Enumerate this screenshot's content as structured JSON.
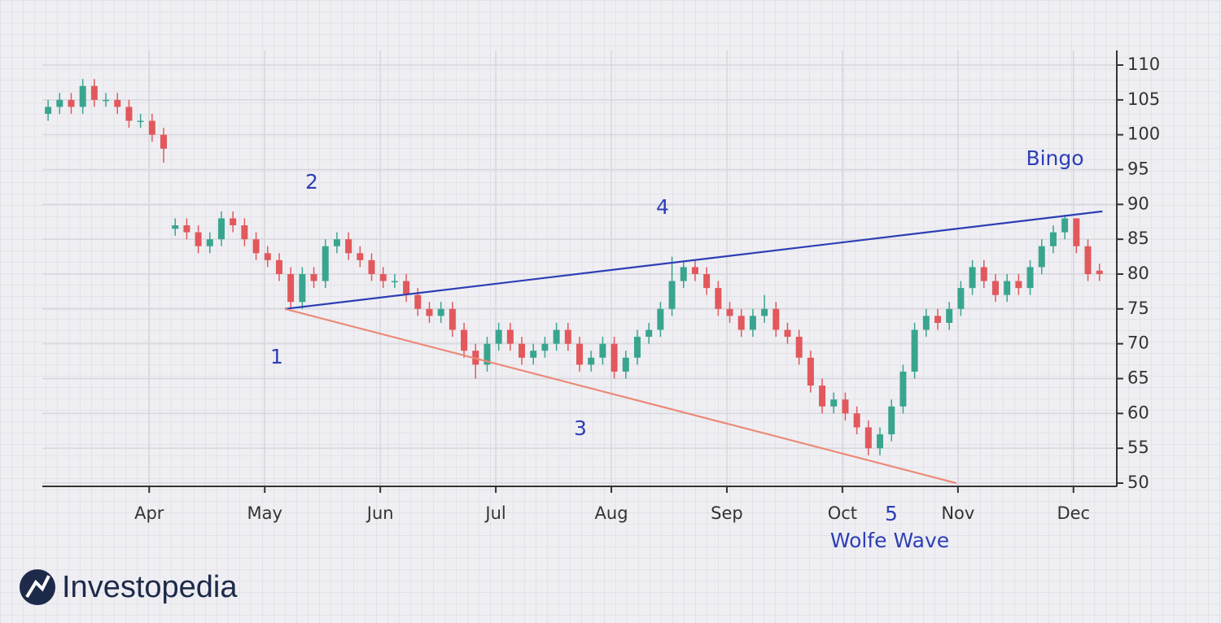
{
  "chart_data": {
    "type": "candlestick",
    "x": [
      1,
      3,
      5,
      7,
      9,
      11,
      13,
      15,
      17,
      19,
      21,
      23,
      25,
      27,
      29,
      31,
      33,
      35,
      37,
      39,
      41,
      43,
      45,
      47,
      49,
      51,
      53,
      55,
      57,
      59,
      61,
      63,
      65,
      67,
      69,
      71,
      73,
      75,
      77,
      79,
      81,
      83,
      85,
      87,
      89,
      91,
      93,
      95,
      97,
      99,
      101,
      103,
      105,
      107,
      109,
      111,
      113,
      115,
      117,
      119,
      121,
      123,
      125,
      127,
      129,
      131,
      133,
      135,
      137,
      139,
      141,
      143,
      145,
      147,
      149,
      151,
      153,
      155,
      157,
      159,
      161,
      163,
      165,
      167,
      169,
      171,
      173,
      175,
      177,
      179,
      181,
      183
    ],
    "open": [
      103,
      104,
      105,
      104,
      107,
      105,
      105,
      104,
      102,
      102,
      100,
      86.5,
      87,
      86,
      84,
      85,
      88,
      87,
      85,
      83,
      82,
      80,
      76,
      80,
      79,
      84,
      85,
      83,
      82,
      80,
      79,
      79,
      77,
      75,
      74,
      75,
      72,
      69,
      67,
      70,
      72,
      70,
      68,
      69,
      70,
      72,
      70,
      67,
      68,
      70,
      66,
      68,
      71,
      72,
      75,
      79,
      81,
      80,
      78,
      75,
      74,
      72,
      74,
      75,
      72,
      71,
      68,
      64,
      61,
      62,
      60,
      58,
      55,
      57,
      61,
      66,
      72,
      74,
      73,
      75,
      78,
      81,
      79,
      77,
      79,
      78,
      81,
      84,
      86,
      88,
      84,
      80.5
    ],
    "high": [
      105,
      106,
      106,
      108,
      108,
      106,
      106,
      105,
      103,
      103,
      101,
      88,
      88,
      87,
      86,
      89,
      89,
      88,
      86,
      84,
      83,
      81,
      81,
      81,
      85,
      86,
      86,
      84,
      83,
      81,
      80,
      80,
      78,
      76,
      76,
      76,
      73,
      70,
      71,
      73,
      73,
      71,
      70,
      71,
      73,
      73,
      71,
      69,
      71,
      71,
      69,
      72,
      73,
      76,
      82.5,
      82,
      82,
      81,
      79,
      76,
      75,
      75,
      77,
      76,
      73,
      72,
      69,
      65,
      63,
      63,
      61,
      59,
      58,
      62,
      67,
      73,
      75,
      75,
      76,
      79,
      82,
      82,
      80,
      80,
      80,
      82,
      85,
      87,
      88.5,
      88,
      85,
      81.5
    ],
    "low": [
      102,
      103,
      103,
      103,
      104,
      104,
      103,
      101,
      101,
      99,
      96,
      85.5,
      85,
      83,
      83,
      84,
      86,
      84,
      82,
      81,
      79,
      75,
      75,
      78,
      78,
      83,
      82,
      81,
      79,
      78,
      78,
      76,
      74,
      73,
      73,
      71,
      68,
      65,
      66,
      69,
      69,
      67,
      67,
      68,
      69,
      69,
      66,
      66,
      67,
      65,
      65,
      67,
      70,
      71,
      74,
      78,
      79,
      77,
      74,
      73,
      71,
      71,
      73,
      71,
      70,
      67,
      63,
      60,
      60,
      59,
      57,
      54,
      54,
      56,
      60,
      65,
      71,
      72,
      72,
      74,
      77,
      78,
      76,
      76,
      77,
      77,
      80,
      83,
      85,
      83,
      79,
      79
    ],
    "close": [
      104,
      105,
      104,
      107,
      105,
      105,
      104,
      102,
      102,
      100,
      98,
      87,
      86,
      84,
      85,
      88,
      87,
      85,
      83,
      82,
      80,
      76,
      80,
      79,
      84,
      85,
      83,
      82,
      80,
      79,
      79,
      77,
      75,
      74,
      75,
      72,
      69,
      67,
      70,
      72,
      70,
      68,
      69,
      70,
      72,
      70,
      67,
      68,
      70,
      66,
      68,
      71,
      72,
      75,
      79,
      81,
      80,
      78,
      75,
      74,
      72,
      74,
      75,
      72,
      71,
      68,
      64,
      61,
      62,
      60,
      58,
      55,
      57,
      61,
      66,
      72,
      74,
      73,
      75,
      78,
      81,
      79,
      77,
      79,
      78,
      81,
      84,
      86,
      88,
      84,
      80,
      80
    ],
    "up_color": "#3aa58f",
    "down_color": "#e2585c",
    "xlim": [
      0,
      186
    ],
    "xticks": [
      {
        "value": 18.5,
        "label": "Apr"
      },
      {
        "value": 38.5,
        "label": "May"
      },
      {
        "value": 58.5,
        "label": "Jun"
      },
      {
        "value": 78.5,
        "label": "Jul"
      },
      {
        "value": 98.5,
        "label": "Aug"
      },
      {
        "value": 118.5,
        "label": "Sep"
      },
      {
        "value": 138.5,
        "label": "Oct"
      },
      {
        "value": 158.5,
        "label": "Nov"
      },
      {
        "value": 178.5,
        "label": "Dec"
      }
    ],
    "ylim": [
      50,
      110
    ],
    "yticks": [
      50,
      55,
      60,
      65,
      70,
      75,
      80,
      85,
      90,
      95,
      100,
      105,
      110
    ],
    "grid": true,
    "trendlines": [
      {
        "color": "#2d3eb5",
        "x": [
          42,
          183.5
        ],
        "y": [
          75,
          89
        ]
      },
      {
        "color": "#ec8a78",
        "x": [
          42,
          158.2
        ],
        "y": [
          75,
          50
        ]
      }
    ],
    "annotation_color": "#2d3eb5",
    "annotations": [
      "1",
      "2",
      "3",
      "4",
      "5",
      "Wolfe Wave",
      "Bingo"
    ]
  },
  "logo": "Investopedia"
}
